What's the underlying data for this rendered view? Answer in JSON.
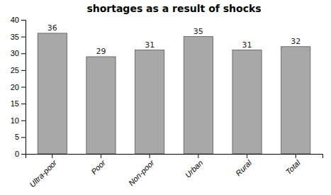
{
  "chart_data": {
    "type": "bar",
    "title": "shortages as a result of shocks",
    "categories": [
      "Ultra-poor",
      "Poor",
      "Non-poor",
      "Urban",
      "Rural",
      "Total"
    ],
    "values": [
      36,
      29,
      31,
      35,
      31,
      32
    ],
    "color": "#a8a8a8",
    "ylim": [
      0,
      40
    ],
    "yticks": [
      0,
      5,
      10,
      15,
      20,
      25,
      30,
      35,
      40
    ],
    "grid": false,
    "data_labels": true
  }
}
